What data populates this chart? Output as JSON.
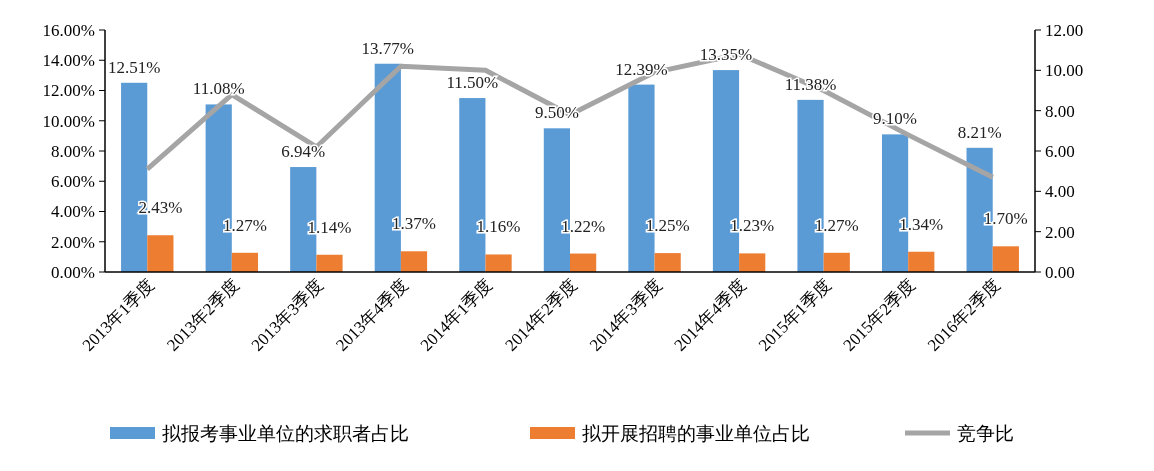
{
  "chart_data": {
    "type": "bar",
    "categories": [
      "2013年1季度",
      "2013年2季度",
      "2013年3季度",
      "2013年4季度",
      "2014年1季度",
      "2014年2季度",
      "2014年3季度",
      "2014年4季度",
      "2015年1季度",
      "2015年2季度",
      "2016年2季度"
    ],
    "series": [
      {
        "name": "拟报考事业单位的求职者占比",
        "color": "#5b9bd5",
        "values": [
          12.51,
          11.08,
          6.94,
          13.77,
          11.5,
          9.5,
          12.39,
          13.35,
          11.38,
          9.1,
          8.21
        ]
      },
      {
        "name": "拟开展招聘的事业单位占比",
        "color": "#ed7d31",
        "values": [
          2.43,
          1.27,
          1.14,
          1.37,
          1.16,
          1.22,
          1.25,
          1.23,
          1.27,
          1.34,
          1.7
        ]
      },
      {
        "name": "竞争比",
        "type": "line",
        "axis": "y2",
        "color": "#a5a5a5",
        "values": [
          5.1,
          8.8,
          6.2,
          10.2,
          10.0,
          7.8,
          9.9,
          10.8,
          9.0,
          6.8,
          4.7
        ]
      }
    ],
    "ylim": [
      0,
      16
    ],
    "yticks": [
      {
        "value": 0,
        "label": "0.00%"
      },
      {
        "value": 2,
        "label": "2.00%"
      },
      {
        "value": 4,
        "label": "4.00%"
      },
      {
        "value": 6,
        "label": "6.00%"
      },
      {
        "value": 8,
        "label": "8.00%"
      },
      {
        "value": 10,
        "label": "10.00%"
      },
      {
        "value": 12,
        "label": "12.00%"
      },
      {
        "value": 14,
        "label": "14.00%"
      },
      {
        "value": 16,
        "label": "16.00%"
      }
    ],
    "y2lim": [
      0,
      12
    ],
    "y2ticks": [
      {
        "value": 0,
        "label": "0.00"
      },
      {
        "value": 2,
        "label": "2.00"
      },
      {
        "value": 4,
        "label": "4.00"
      },
      {
        "value": 6,
        "label": "6.00"
      },
      {
        "value": 8,
        "label": "8.00"
      },
      {
        "value": 10,
        "label": "10.00"
      },
      {
        "value": 12,
        "label": "12.00"
      }
    ],
    "value_labels": [
      [
        "12.51%",
        "11.08%",
        "6.94%",
        "13.77%",
        "11.50%",
        "9.50%",
        "12.39%",
        "13.35%",
        "11.38%",
        "9.10%",
        "8.21%"
      ],
      [
        "2.43%",
        "1.27%",
        "1.14%",
        "1.37%",
        "1.16%",
        "1.22%",
        "1.25%",
        "1.23%",
        "1.27%",
        "1.34%",
        "1.70%"
      ]
    ],
    "legend": "bottom",
    "grid": false
  }
}
